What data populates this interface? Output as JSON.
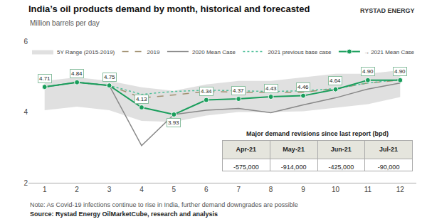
{
  "chart_data": {
    "type": "line",
    "title": "India’s oil products demand by month, historical and forecasted",
    "subtitle": "Million barrels per day",
    "x": [
      1,
      2,
      3,
      4,
      5,
      6,
      7,
      8,
      9,
      10,
      11,
      12
    ],
    "series": [
      {
        "name": "5Y Range (2015-2019)",
        "type": "band",
        "color": "#cccccc",
        "low": [
          4.05,
          4.15,
          4.05,
          3.75,
          3.72,
          3.9,
          4.0,
          4.0,
          4.02,
          4.12,
          4.22,
          4.42
        ],
        "high": [
          4.88,
          4.98,
          4.88,
          4.7,
          4.6,
          4.78,
          4.88,
          4.88,
          4.98,
          5.08,
          5.08,
          5.18
        ]
      },
      {
        "name": "2019",
        "color": "#a09070",
        "line_style": "dashed",
        "values": [
          4.71,
          4.84,
          4.75,
          4.4,
          4.48,
          4.58,
          4.56,
          4.56,
          4.56,
          4.66,
          4.82,
          4.9
        ]
      },
      {
        "name": "2020 Mean Case",
        "color": "#888888",
        "line_style": "solid",
        "values": [
          4.71,
          4.84,
          4.75,
          3.05,
          3.93,
          4.05,
          4.1,
          3.98,
          4.2,
          4.4,
          4.65,
          4.82
        ]
      },
      {
        "name": "2021 previous base case",
        "color": "#50c09a",
        "line_style": "dotted",
        "values": [
          4.71,
          4.84,
          4.75,
          4.5,
          4.58,
          4.62,
          4.6,
          4.58,
          4.6,
          4.66,
          4.82,
          4.92
        ]
      },
      {
        "name": "→ 2021 Mean Case",
        "color": "#1a9e5c",
        "line_style": "solid",
        "marker": "circle",
        "data_labels": true,
        "values": [
          4.71,
          4.84,
          4.75,
          4.13,
          3.93,
          4.34,
          4.37,
          4.43,
          4.46,
          4.64,
          4.9,
          4.9
        ],
        "value_labels": [
          "4.71",
          "4.84",
          "4.75",
          "4.13",
          "3.93",
          "4.34",
          "4.37",
          "4.43",
          "4.46",
          "4.64",
          "4.90",
          "4.90"
        ]
      }
    ],
    "xlim": [
      0.5,
      12.5
    ],
    "xticks": [
      1,
      2,
      3,
      4,
      5,
      6,
      7,
      8,
      9,
      10,
      11,
      12
    ],
    "ylim": [
      2,
      6
    ],
    "yticks": [
      2,
      4,
      6
    ],
    "grid": false,
    "legend": "upper left",
    "note": "Note: As Covid-19 infections continue to rise in India, further demand downgrades are possible",
    "source": "Source: Rystad Energy OilMarketCube, research and analysis",
    "annotations": [
      "RYSTAD ENERGY"
    ],
    "table": {
      "title": "Major demand revisions since last report (bpd)",
      "columns": [
        "Apr-21",
        "May-21",
        "Jun-21",
        "Jul-21"
      ],
      "values": [
        "-575,000",
        "-914,000",
        "-425,000",
        "-90,000"
      ]
    }
  }
}
